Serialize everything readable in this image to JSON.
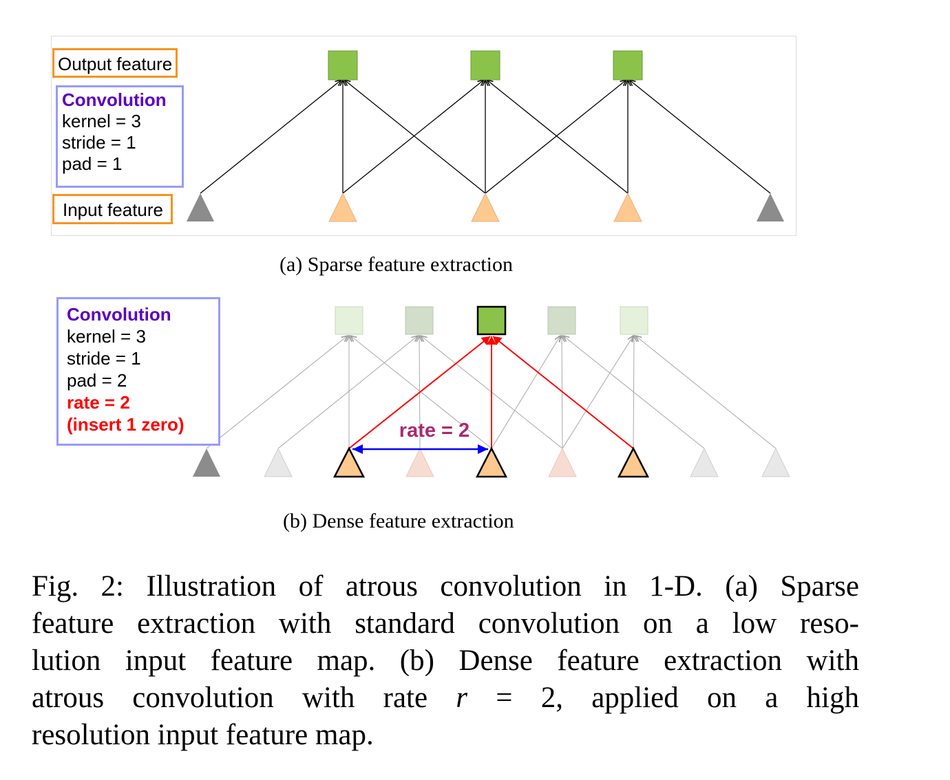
{
  "panel_a": {
    "output_label": "Output feature",
    "input_label": "Input feature",
    "conv": {
      "title": "Convolution",
      "kernel": "kernel = 3",
      "stride": "stride = 1",
      "pad": "pad = 1"
    },
    "caption": "(a) Sparse feature extraction"
  },
  "panel_b": {
    "conv": {
      "title": "Convolution",
      "kernel": "kernel = 3",
      "stride": "stride = 1",
      "pad": "pad = 2",
      "rate": "rate = 2",
      "insert": "(insert 1 zero)"
    },
    "rate_annotation": "rate = 2",
    "caption": "(b) Dense feature extraction"
  },
  "colors": {
    "output_green": "#8bc34a",
    "input_orange": "#fdc98e",
    "padding_gray": "#8c8c8c",
    "label_orange": "#f7931e",
    "label_purple": "#9999ff",
    "title_purple": "#5b00c2",
    "rate_red": "#ff0000",
    "rate_arrow_blue": "#0000ff",
    "rate_text_magenta": "#aa2a6e"
  },
  "figure_caption": {
    "line1": "Fig. 2: Illustration of atrous convolution in 1-D. (a) Sparse",
    "line2": "feature extraction with standard convolution on a low reso-",
    "line3": "lution input feature map. (b) Dense feature extraction with",
    "line4_pre": "atrous convolution with rate ",
    "line4_var": "r",
    "line4_eq": " = ",
    "line4_val": "2",
    "line4_post": ", applied on a high",
    "line5": "resolution input feature map."
  }
}
